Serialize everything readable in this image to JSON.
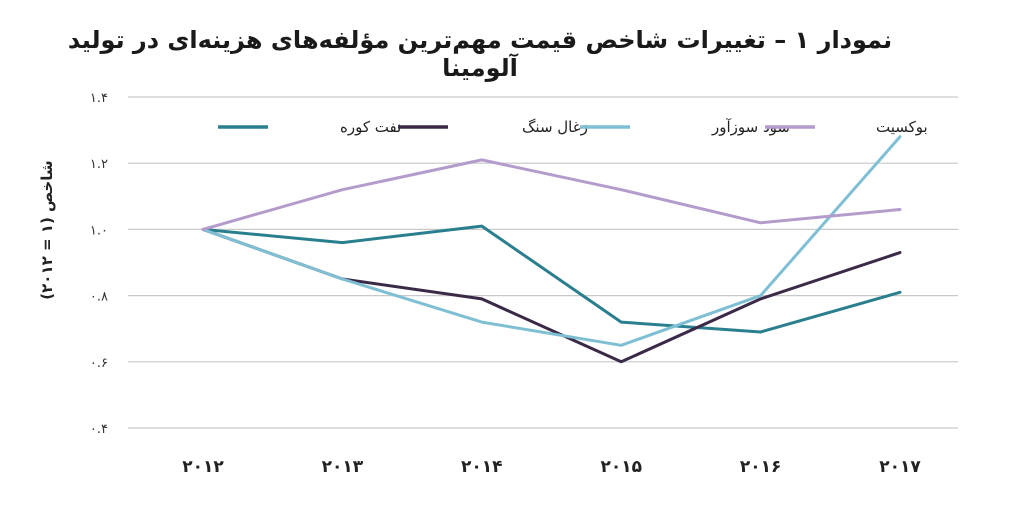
{
  "chart_data": {
    "type": "line",
    "title": "نمودار ۱ – تغییرات شاخص قیمت مهم‌ترین مؤلفه‌های هزینه‌ای در تولید آلومینا",
    "ylabel": "شاخص (۱ = ۲۰۱۲)",
    "xlabel": "",
    "x": [
      2012,
      2013,
      2014,
      2015,
      2016,
      2017
    ],
    "x_tick_labels": [
      "۲۰۱۲",
      "۲۰۱۳",
      "۲۰۱۴",
      "۲۰۱۵",
      "۲۰۱۶",
      "۲۰۱۷"
    ],
    "ylim": [
      0.4,
      1.4
    ],
    "y_ticks": [
      0.4,
      0.6,
      0.8,
      1.0,
      1.2,
      1.4
    ],
    "y_tick_labels": [
      "۰.۴",
      "۰.۶",
      "۰.۸",
      "۱.۰",
      "۱.۲",
      "۱.۴"
    ],
    "grid": "horizontal",
    "legend_position": "top",
    "series": [
      {
        "name": "نفت کوره",
        "color": "#2a7f8f",
        "values": [
          1.0,
          0.96,
          1.01,
          0.72,
          0.69,
          0.81
        ]
      },
      {
        "name": "زغال سنگ",
        "color": "#3a2a48",
        "values": [
          1.0,
          0.85,
          0.79,
          0.6,
          0.79,
          0.93
        ]
      },
      {
        "name": "سود سوزآور",
        "color": "#7fbfd4",
        "values": [
          1.0,
          0.85,
          0.72,
          0.65,
          0.8,
          1.28
        ]
      },
      {
        "name": "بوکسیت",
        "color": "#b39ccc",
        "values": [
          1.0,
          1.12,
          1.21,
          1.12,
          1.02,
          1.06
        ]
      }
    ]
  }
}
